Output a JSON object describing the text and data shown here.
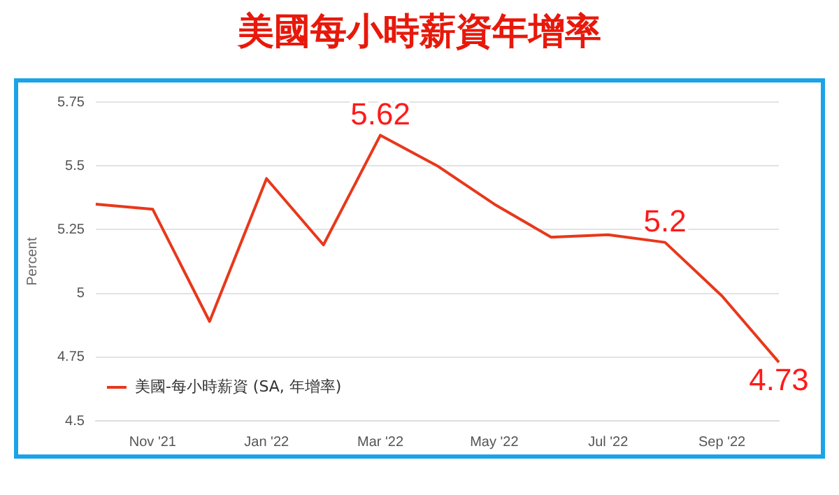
{
  "chart_data": {
    "type": "line",
    "title": "美國每小時薪資年增率",
    "ylabel": "Percent",
    "categories": [
      null,
      "Nov '21",
      null,
      "Jan '22",
      null,
      "Mar '22",
      null,
      "May '22",
      null,
      "Jul '22",
      null,
      "Sep '22",
      null
    ],
    "series": [
      {
        "name": "美國-每小時薪資 (SA, 年增率)",
        "color": "#e8381b",
        "values": [
          5.35,
          5.33,
          4.89,
          5.45,
          5.19,
          5.62,
          5.5,
          5.35,
          5.22,
          5.23,
          5.2,
          4.99,
          4.73
        ],
        "value_labels": [
          null,
          null,
          null,
          null,
          null,
          "5.62",
          null,
          null,
          null,
          null,
          "5.2",
          null,
          "4.73"
        ]
      }
    ],
    "ylim": [
      4.5,
      5.75
    ],
    "yticks": [
      4.5,
      4.75,
      5,
      5.25,
      5.5,
      5.75
    ],
    "grid": "y",
    "legend": "bottom left",
    "marker": "none",
    "line_style": "solid"
  }
}
